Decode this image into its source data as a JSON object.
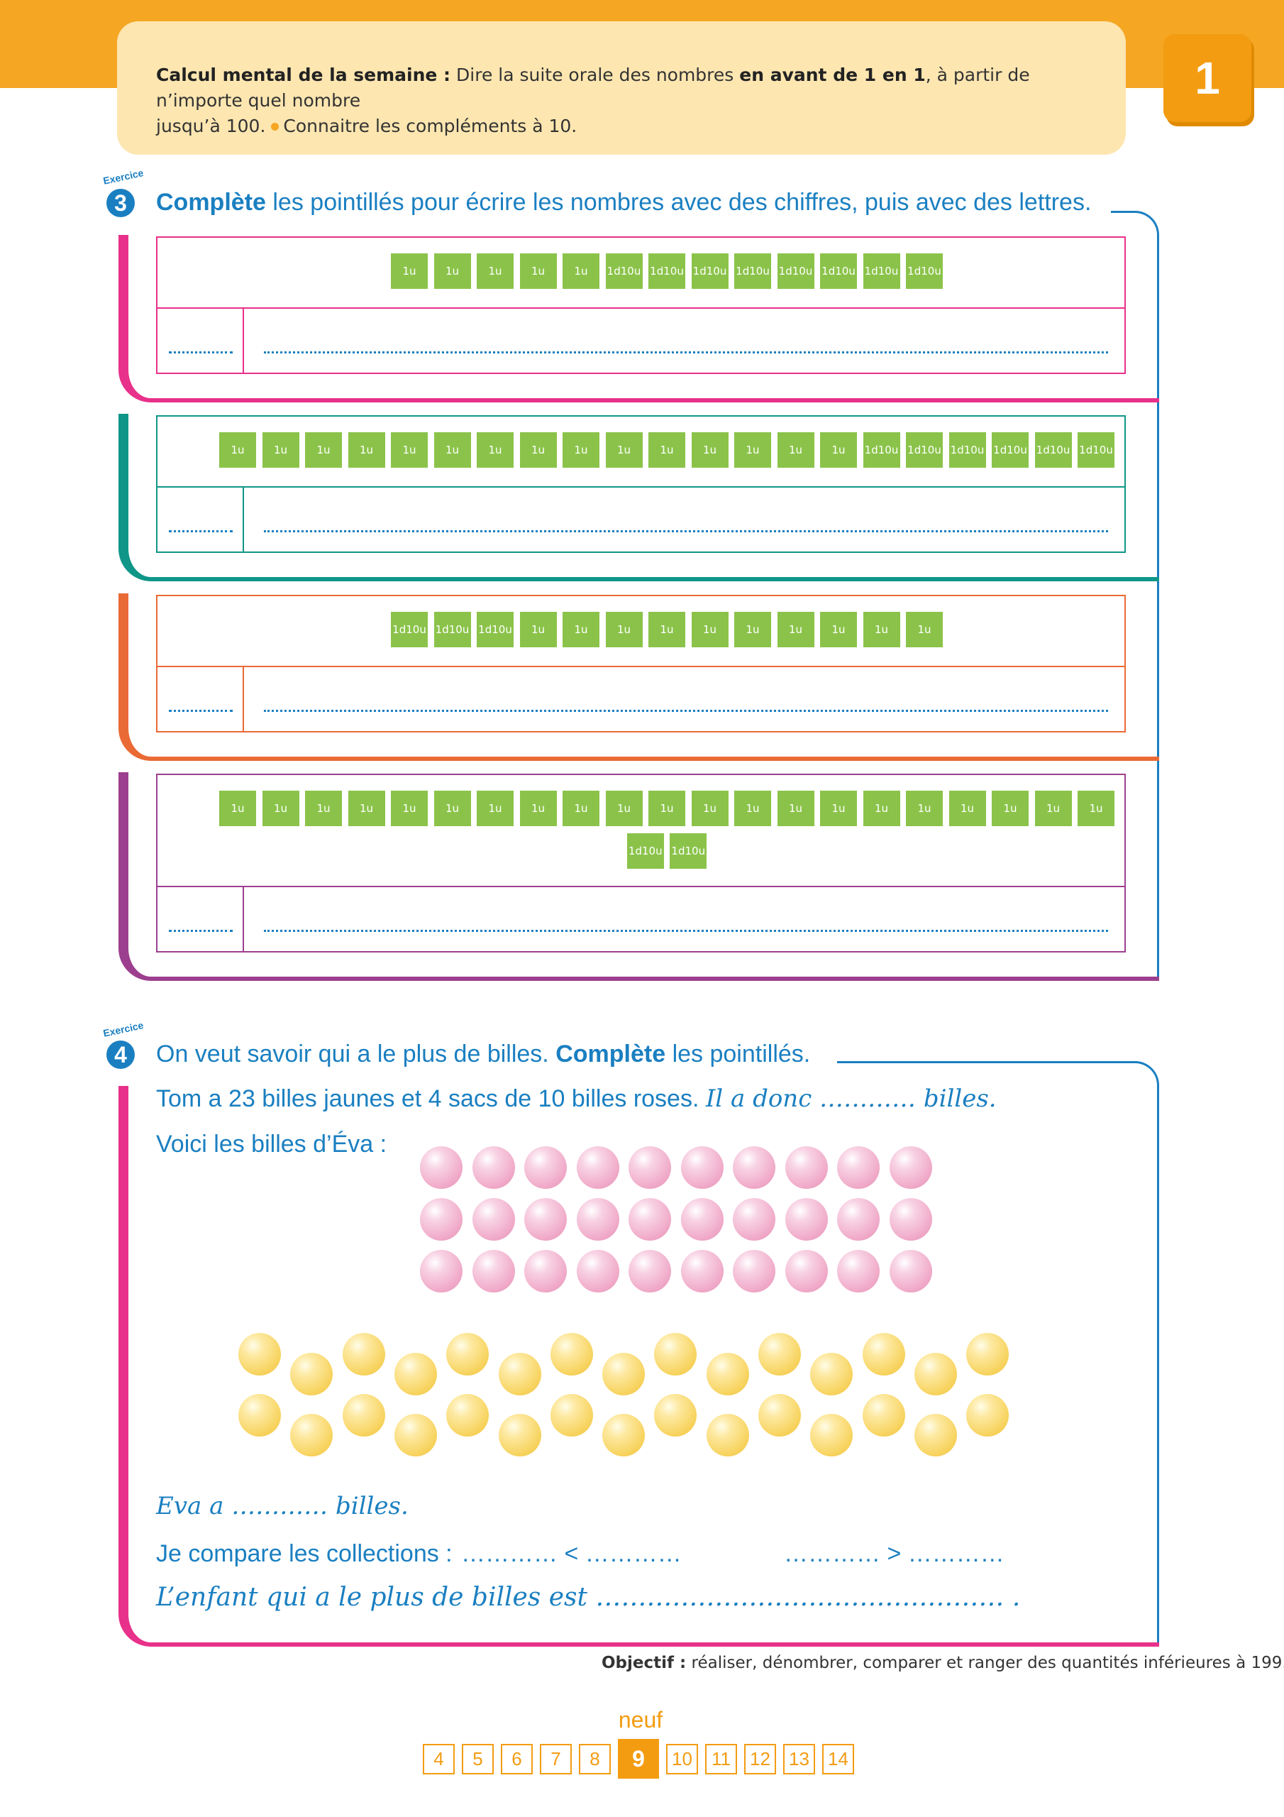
{
  "header": {
    "calc_title": "Calcul mental de la semaine :",
    "calc_text1": "Dire la suite orale des nombres",
    "calc_bold": "en avant de 1 en 1",
    "calc_text2": ", à partir de n’importe quel nombre",
    "calc_text3": "jusqu’à 100.",
    "calc_text4": "Connaitre les compléments à 10.",
    "unit_number": "1"
  },
  "exercise3": {
    "label": "Exercice",
    "number": "3",
    "title_bold": "Complète",
    "title_rest": "les pointillés pour écrire les nombres avec des chiffres, puis avec des lettres.",
    "unit_block": "1u",
    "ten_block_top": "1d",
    "ten_block_bottom": "10u",
    "short_dots": "..........",
    "long_dots": "........................................................................................................................................",
    "rows": [
      {
        "units": 5,
        "tens": 8,
        "order": "units-first",
        "color": "#e8318a"
      },
      {
        "units": 15,
        "tens": 6,
        "order": "units-first",
        "color": "#0f9688"
      },
      {
        "units": 10,
        "tens": 3,
        "order": "tens-first",
        "color": "#ea6a35"
      },
      {
        "units": 21,
        "tens": 2,
        "order": "units-first",
        "color": "#9d3f8f"
      }
    ]
  },
  "exercise4": {
    "label": "Exercice",
    "number": "4",
    "title_start": "On veut savoir qui a le plus de billes.",
    "title_bold": "Complète",
    "title_end": "les pointillés.",
    "tom_line": "Tom a 23 billes jaunes et 4 sacs de 10 billes roses.",
    "tom_script": "Il a donc ………… billes.",
    "eva_intro": "Voici les billes d’Éva :",
    "pink_count": 30,
    "yellow_count": 30,
    "eva_script": "Eva a ………… billes.",
    "compare_label": "Je compare les collections :",
    "compare_left": "………… < …………",
    "compare_right": "………… > …………",
    "conclusion": "L’enfant qui a le plus de billes est ………………………………………… ."
  },
  "footer": {
    "objective_label": "Objectif :",
    "objective_text": "réaliser, dénombrer, comparer et ranger des quantités inférieures à 199.",
    "page_word": "neuf",
    "pages": [
      "4",
      "5",
      "6",
      "7",
      "8",
      "9",
      "10",
      "11",
      "12",
      "13",
      "14"
    ],
    "current_page": "9"
  },
  "colors": {
    "orange": "#f5a623",
    "blue": "#1a7fc1",
    "green": "#8bc34a",
    "pink": "#e8318a"
  }
}
